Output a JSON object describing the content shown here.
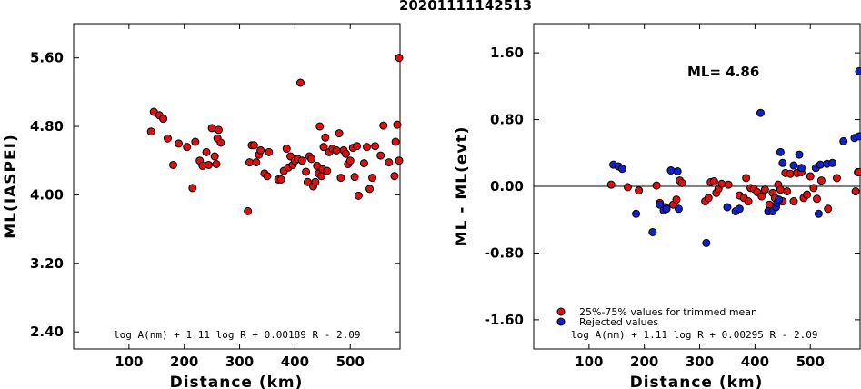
{
  "title": "20201111142513",
  "colors": {
    "accepted": "#dd1111",
    "rejected": "#1122cc",
    "outline": "#000000"
  },
  "chart_data": [
    {
      "type": "scatter",
      "xlabel": "Distance (km)",
      "ylabel": "ML(IASPEI)",
      "xlim": [
        0,
        590
      ],
      "ylim": [
        2.2,
        6.0
      ],
      "xticks": [
        100,
        200,
        300,
        400,
        500
      ],
      "yticks": [
        2.4,
        3.2,
        4.0,
        4.8,
        5.6
      ],
      "ytick_labels": [
        "2.40",
        "3.20",
        "4.00",
        "4.80",
        "5.60"
      ],
      "formula": "log A(nm) + 1.11 log R + 0.00189 R - 2.09",
      "grid": false,
      "series": [
        {
          "color": "red",
          "points": [
            [
              140,
              4.74
            ],
            [
              145,
              4.97
            ],
            [
              155,
              4.93
            ],
            [
              162,
              4.89
            ],
            [
              170,
              4.66
            ],
            [
              180,
              4.35
            ],
            [
              190,
              4.6
            ],
            [
              205,
              4.56
            ],
            [
              215,
              4.08
            ],
            [
              220,
              4.62
            ],
            [
              228,
              4.4
            ],
            [
              233,
              4.34
            ],
            [
              240,
              4.5
            ],
            [
              244,
              4.35
            ],
            [
              250,
              4.78
            ],
            [
              255,
              4.45
            ],
            [
              258,
              4.36
            ],
            [
              260,
              4.66
            ],
            [
              262,
              4.76
            ],
            [
              266,
              4.61
            ],
            [
              315,
              3.81
            ],
            [
              318,
              4.38
            ],
            [
              322,
              4.58
            ],
            [
              326,
              4.58
            ],
            [
              330,
              4.38
            ],
            [
              335,
              4.47
            ],
            [
              338,
              4.52
            ],
            [
              345,
              4.25
            ],
            [
              350,
              4.22
            ],
            [
              353,
              4.5
            ],
            [
              370,
              4.18
            ],
            [
              375,
              4.18
            ],
            [
              380,
              4.28
            ],
            [
              385,
              4.54
            ],
            [
              388,
              4.32
            ],
            [
              392,
              4.45
            ],
            [
              396,
              4.35
            ],
            [
              400,
              4.4
            ],
            [
              405,
              4.42
            ],
            [
              410,
              5.31
            ],
            [
              413,
              4.4
            ],
            [
              420,
              4.27
            ],
            [
              423,
              4.15
            ],
            [
              426,
              4.45
            ],
            [
              430,
              4.42
            ],
            [
              433,
              4.1
            ],
            [
              437,
              4.15
            ],
            [
              440,
              4.34
            ],
            [
              443,
              4.25
            ],
            [
              445,
              4.8
            ],
            [
              448,
              4.22
            ],
            [
              450,
              4.3
            ],
            [
              452,
              4.56
            ],
            [
              455,
              4.67
            ],
            [
              458,
              4.28
            ],
            [
              462,
              4.5
            ],
            [
              468,
              4.54
            ],
            [
              475,
              4.52
            ],
            [
              480,
              4.72
            ],
            [
              483,
              4.2
            ],
            [
              488,
              4.52
            ],
            [
              492,
              4.48
            ],
            [
              496,
              4.36
            ],
            [
              500,
              4.4
            ],
            [
              505,
              4.55
            ],
            [
              508,
              4.21
            ],
            [
              512,
              4.57
            ],
            [
              515,
              3.99
            ],
            [
              525,
              4.37
            ],
            [
              530,
              4.56
            ],
            [
              535,
              4.07
            ],
            [
              540,
              4.2
            ],
            [
              545,
              4.57
            ],
            [
              555,
              4.46
            ],
            [
              560,
              4.81
            ],
            [
              570,
              4.38
            ],
            [
              580,
              4.22
            ],
            [
              582,
              4.62
            ],
            [
              585,
              4.82
            ],
            [
              590,
              4.4
            ],
            [
              592,
              5.6
            ]
          ]
        }
      ]
    },
    {
      "type": "scatter",
      "xlabel": "Distance (km)",
      "ylabel": "ML - ML(evt)",
      "xlim": [
        0,
        590
      ],
      "ylim": [
        -1.95,
        1.95
      ],
      "xticks": [
        100,
        200,
        300,
        400,
        500
      ],
      "yticks": [
        -1.6,
        -0.8,
        0.0,
        0.8,
        1.6
      ],
      "ytick_labels": [
        "-1.60",
        "-0.80",
        "0.00",
        "0.80",
        "1.60"
      ],
      "annotation": "ML= 4.86",
      "formula": "log A(nm) + 1.11 log R + 0.00295 R - 2.09",
      "legend_position": "bottom-left",
      "reference_line": 0.0,
      "series": [
        {
          "name": "25%-75% values for trimmed mean",
          "color": "red",
          "points": [
            [
              140,
              0.02
            ],
            [
              170,
              -0.01
            ],
            [
              190,
              -0.05
            ],
            [
              222,
              0.01
            ],
            [
              228,
              -0.2
            ],
            [
              238,
              -0.25
            ],
            [
              252,
              -0.22
            ],
            [
              258,
              -0.16
            ],
            [
              264,
              0.07
            ],
            [
              268,
              0.04
            ],
            [
              310,
              -0.18
            ],
            [
              316,
              -0.14
            ],
            [
              320,
              0.05
            ],
            [
              326,
              0.06
            ],
            [
              330,
              -0.08
            ],
            [
              334,
              -0.03
            ],
            [
              340,
              0.03
            ],
            [
              352,
              0.02
            ],
            [
              372,
              -0.11
            ],
            [
              380,
              -0.14
            ],
            [
              384,
              0.1
            ],
            [
              388,
              -0.18
            ],
            [
              392,
              -0.02
            ],
            [
              398,
              -0.03
            ],
            [
              404,
              -0.07
            ],
            [
              412,
              -0.12
            ],
            [
              418,
              -0.04
            ],
            [
              426,
              -0.22
            ],
            [
              432,
              -0.08
            ],
            [
              436,
              -0.14
            ],
            [
              442,
              0.02
            ],
            [
              446,
              -0.04
            ],
            [
              450,
              -0.18
            ],
            [
              455,
              0.16
            ],
            [
              458,
              -0.06
            ],
            [
              464,
              0.15
            ],
            [
              470,
              -0.18
            ],
            [
              476,
              0.16
            ],
            [
              484,
              0.17
            ],
            [
              488,
              -0.14
            ],
            [
              494,
              -0.1
            ],
            [
              500,
              0.12
            ],
            [
              506,
              -0.02
            ],
            [
              512,
              -0.15
            ],
            [
              520,
              0.07
            ],
            [
              532,
              -0.27
            ],
            [
              548,
              0.1
            ],
            [
              582,
              -0.06
            ],
            [
              586,
              0.17
            ],
            [
              592,
              0.17
            ]
          ]
        },
        {
          "name": "Rejected values",
          "color": "blue",
          "points": [
            [
              144,
              0.26
            ],
            [
              153,
              0.24
            ],
            [
              160,
              0.21
            ],
            [
              185,
              -0.33
            ],
            [
              215,
              -0.55
            ],
            [
              228,
              -0.22
            ],
            [
              235,
              -0.29
            ],
            [
              240,
              -0.27
            ],
            [
              248,
              0.19
            ],
            [
              260,
              0.18
            ],
            [
              262,
              -0.27
            ],
            [
              312,
              -0.68
            ],
            [
              350,
              -0.25
            ],
            [
              365,
              -0.3
            ],
            [
              372,
              -0.27
            ],
            [
              410,
              0.88
            ],
            [
              424,
              -0.3
            ],
            [
              432,
              -0.3
            ],
            [
              438,
              -0.25
            ],
            [
              440,
              -0.2
            ],
            [
              443,
              -0.16
            ],
            [
              446,
              0.41
            ],
            [
              450,
              0.28
            ],
            [
              470,
              0.25
            ],
            [
              480,
              0.38
            ],
            [
              484,
              0.22
            ],
            [
              510,
              0.22
            ],
            [
              515,
              -0.33
            ],
            [
              518,
              0.26
            ],
            [
              530,
              0.27
            ],
            [
              540,
              0.28
            ],
            [
              560,
              0.54
            ],
            [
              580,
              0.58
            ],
            [
              592,
              1.38
            ],
            [
              594,
              0.6
            ]
          ]
        }
      ]
    }
  ]
}
